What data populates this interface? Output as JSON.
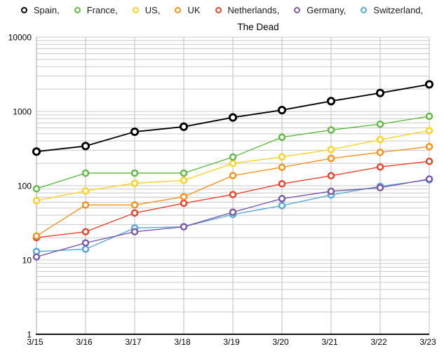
{
  "chart_data": {
    "type": "line",
    "title": "The Dead",
    "x_labels": [
      "3/15",
      "3/16",
      "3/17",
      "3/18",
      "3/19",
      "3/20",
      "3/21",
      "3/22",
      "3/23"
    ],
    "y_axis": {
      "scale": "log",
      "min": 1,
      "max": 10000,
      "tick_values": [
        1,
        10,
        100,
        1000,
        10000
      ],
      "tick_labels": [
        "1",
        "10",
        "100",
        "1000",
        "10000"
      ],
      "minor_gridlines": true
    },
    "legend_position": "top",
    "grid": {
      "vertical": true,
      "horizontal": true
    },
    "series": [
      {
        "name": "Spain",
        "legend_label": "Spain,",
        "color": "#000000",
        "values": [
          288,
          342,
          533,
          623,
          830,
          1043,
          1375,
          1772,
          2311
        ]
      },
      {
        "name": "France",
        "legend_label": "France,",
        "color": "#62bb46",
        "values": [
          91,
          148,
          148,
          148,
          243,
          450,
          562,
          674,
          860
        ]
      },
      {
        "name": "US",
        "legend_label": "US,",
        "color": "#fbd324",
        "values": [
          63,
          85,
          108,
          118,
          200,
          244,
          307,
          417,
          552
        ]
      },
      {
        "name": "UK",
        "legend_label": "UK",
        "color": "#f6921e",
        "values": [
          21,
          55,
          55,
          71,
          137,
          177,
          233,
          281,
          335
        ]
      },
      {
        "name": "Netherlands",
        "legend_label": "Netherlands,",
        "color": "#e8432c",
        "values": [
          20,
          24,
          43,
          58,
          76,
          106,
          136,
          179,
          213
        ]
      },
      {
        "name": "Germany",
        "legend_label": "Germany,",
        "color": "#7a5ca5",
        "values": [
          11,
          17,
          24,
          28,
          44,
          67,
          84,
          94,
          123
        ]
      },
      {
        "name": "Switzerland",
        "legend_label": "Switzerland,",
        "color": "#58a8d8",
        "values": [
          13,
          14,
          27,
          28,
          41,
          54,
          75,
          98,
          120
        ]
      }
    ],
    "colors": {
      "background": "#ffffff",
      "gridline": "#c9c9c9",
      "vertical_gridline": "#bdbdbd",
      "left_axis": "#a6a6a6",
      "bottom_axis": "#111111",
      "marker_fill": "#ffffff"
    }
  }
}
